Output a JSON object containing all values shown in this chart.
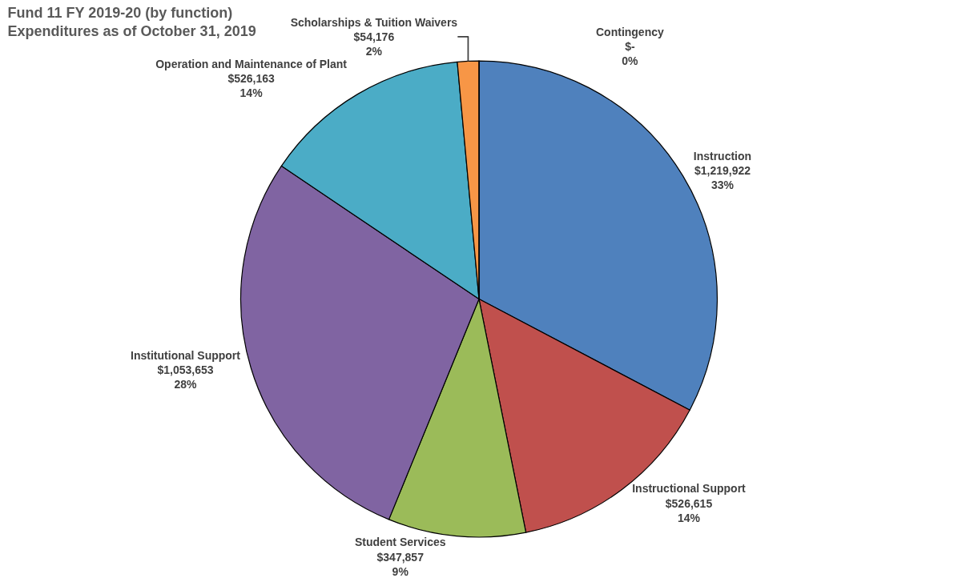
{
  "chart_data": {
    "type": "pie",
    "title": "Fund 11 FY 2019-20 (by function)\nExpenditures as of October 31, 2019",
    "categories": [
      "Instruction",
      "Instructional Support",
      "Student Services",
      "Institutional Support",
      "Operation and Maintenance of Plant",
      "Scholarships & Tuition Waivers",
      "Contingency"
    ],
    "values": [
      1219922,
      526615,
      347857,
      1053653,
      526163,
      54176,
      0
    ],
    "value_labels": [
      "$1,219,922\n33%",
      "$526,615\n14%",
      "$347,857\n9%",
      "$1,053,653\n28%",
      "$526,163\n14%",
      "$54,176\n2%",
      "$-\n0%"
    ],
    "colors": [
      "#4f81bd",
      "#c0504d",
      "#9bbb59",
      "#8064a2",
      "#4bacc6",
      "#f79646",
      "#1f497d"
    ],
    "legend": false
  }
}
